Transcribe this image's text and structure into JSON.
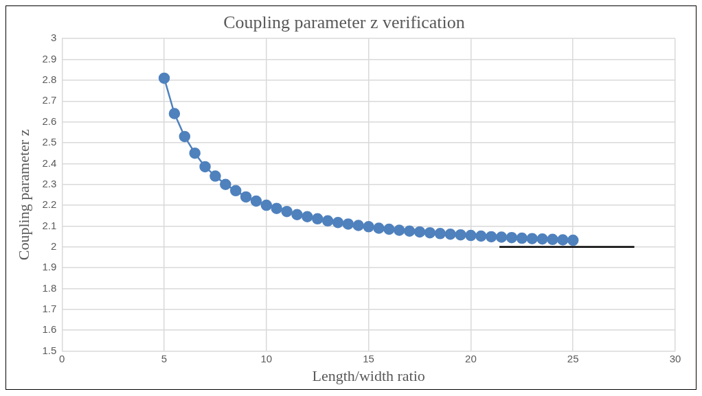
{
  "chart_data": {
    "type": "line",
    "title": "Coupling parameter z verification",
    "xlabel": "Length/width ratio",
    "ylabel": "Coupling parameter z",
    "xlim": [
      0,
      30
    ],
    "xticks": [
      0,
      5,
      10,
      15,
      20,
      25,
      30
    ],
    "ylim": [
      1.5,
      3
    ],
    "yticks": [
      1.5,
      1.6,
      1.7,
      1.8,
      1.9,
      2,
      2.1,
      2.2,
      2.3,
      2.4,
      2.5,
      2.6,
      2.7,
      2.8,
      2.9,
      3
    ],
    "grid": true,
    "legend": false,
    "series": [
      {
        "color": "#4f81bd",
        "marker": "circle",
        "x": [
          5,
          5.5,
          6,
          6.5,
          7,
          7.5,
          8,
          8.5,
          9,
          9.5,
          10,
          10.5,
          11,
          11.5,
          12,
          12.5,
          13,
          13.5,
          14,
          14.5,
          15,
          15.5,
          16,
          16.5,
          17,
          17.5,
          18,
          18.5,
          19,
          19.5,
          20,
          20.5,
          21,
          21.5,
          22,
          22.5,
          23,
          23.5,
          24,
          24.5,
          25
        ],
        "values": [
          2.81,
          2.64,
          2.53,
          2.45,
          2.385,
          2.34,
          2.3,
          2.27,
          2.24,
          2.22,
          2.2,
          2.185,
          2.17,
          2.155,
          2.145,
          2.135,
          2.125,
          2.117,
          2.11,
          2.103,
          2.097,
          2.09,
          2.085,
          2.08,
          2.076,
          2.072,
          2.068,
          2.064,
          2.061,
          2.058,
          2.055,
          2.052,
          2.049,
          2.047,
          2.045,
          2.042,
          2.04,
          2.038,
          2.036,
          2.034,
          2.032
        ]
      },
      {
        "color": "#000000",
        "marker": "none",
        "x": [
          21.4,
          28
        ],
        "values": [
          2,
          2
        ]
      }
    ]
  }
}
